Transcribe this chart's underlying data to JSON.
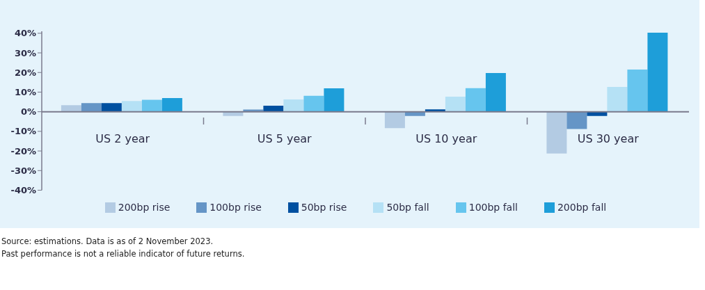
{
  "chart_data": {
    "type": "bar",
    "categories": [
      "US 2 year",
      "US 5 year",
      "US 10 year",
      "US 30 year"
    ],
    "series": [
      {
        "name": "200bp rise",
        "color": "#b3cbe3",
        "values": [
          3.3,
          -2.2,
          -8.4,
          -21.3
        ]
      },
      {
        "name": "100bp rise",
        "color": "#6595c6",
        "values": [
          4.4,
          1.1,
          -2.2,
          -8.8
        ]
      },
      {
        "name": "50bp rise",
        "color": "#0050a0",
        "values": [
          4.4,
          3.1,
          1.2,
          -2.2
        ]
      },
      {
        "name": "50bp fall",
        "color": "#b5e1f5",
        "values": [
          5.5,
          6.3,
          7.7,
          12.6
        ]
      },
      {
        "name": "100bp fall",
        "color": "#66c5ee",
        "values": [
          6.1,
          8.1,
          12.0,
          21.5
        ]
      },
      {
        "name": "200bp fall",
        "color": "#1e9ed9",
        "values": [
          7.0,
          11.9,
          19.7,
          40.3
        ]
      }
    ],
    "ylim": [
      -40,
      41
    ],
    "yticks": [
      {
        "value": -40,
        "label": "-40%"
      },
      {
        "value": -30,
        "label": "-30%"
      },
      {
        "value": -20,
        "label": "-20%"
      },
      {
        "value": -10,
        "label": "-10%"
      },
      {
        "value": 0,
        "label": "0%"
      },
      {
        "value": 10,
        "label": "10%"
      },
      {
        "value": 20,
        "label": "20%"
      },
      {
        "value": 30,
        "label": "30%"
      },
      {
        "value": 40,
        "label": "40%"
      }
    ],
    "grid": false,
    "legend": "bottom",
    "annotations": [
      "Source: estimations. Data is as of 2 November 2023.",
      "Past performance is not a reliable indicator of future returns."
    ]
  }
}
